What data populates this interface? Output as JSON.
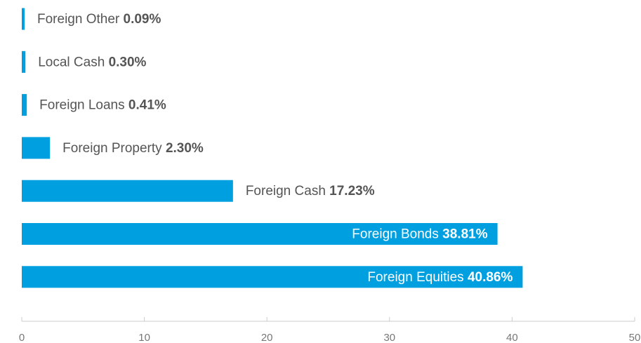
{
  "chart_data": {
    "type": "barh",
    "categories": [
      "Foreign Other",
      "Local Cash",
      "Foreign Loans",
      "Foreign Property",
      "Foreign Cash",
      "Foreign Bonds",
      "Foreign Equities"
    ],
    "values": [
      0.09,
      0.3,
      0.41,
      2.3,
      17.23,
      38.81,
      40.86
    ],
    "value_labels": [
      "0.09%",
      "0.30%",
      "0.41%",
      "2.30%",
      "17.23%",
      "38.81%",
      "40.86%"
    ],
    "color": "#009fdf",
    "xlim": [
      0,
      50
    ],
    "xticks": [
      0,
      10,
      20,
      30,
      40,
      50
    ]
  }
}
